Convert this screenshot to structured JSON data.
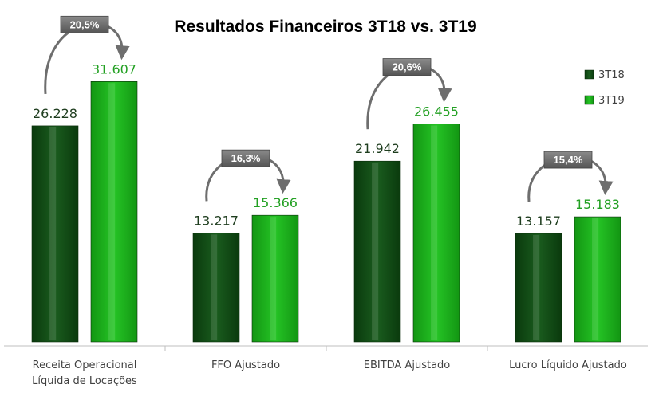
{
  "chart_data": {
    "type": "bar",
    "title": "Resultados Financeiros 3T18 vs. 3T19",
    "categories": [
      [
        "Receita Operacional",
        "Líquida de Locações"
      ],
      [
        "FFO Ajustado"
      ],
      [
        "EBITDA Ajustado"
      ],
      [
        "Lucro Líquido Ajustado"
      ]
    ],
    "series": [
      {
        "name": "3T18",
        "values": [
          26228,
          13217,
          21942,
          13157
        ],
        "labels": [
          "26.228",
          "13.217",
          "21.942",
          "13.157"
        ],
        "color": "#0e4a12"
      },
      {
        "name": "3T19",
        "values": [
          31607,
          15366,
          26455,
          15183
        ],
        "labels": [
          "31.607",
          "15.366",
          "26.455",
          "15.183"
        ],
        "color": "#19b319"
      }
    ],
    "growth_labels": [
      "20,5%",
      "16,3%",
      "20,6%",
      "15,4%"
    ],
    "ylim": [
      0,
      35700
    ],
    "legend": "top-right",
    "grid": false,
    "colors": {
      "dark_label": "#1e3d1e",
      "light_label": "#22a022",
      "badge": "#707070"
    }
  }
}
